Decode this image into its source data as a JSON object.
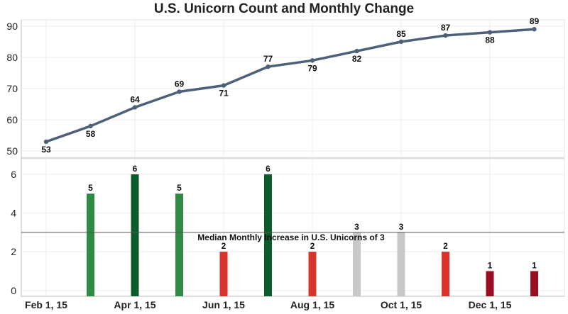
{
  "chart_data": {
    "title": "U.S. Unicorn Count and Monthly Change",
    "x_ticks": [
      "Feb 1, 15",
      "Apr 1, 15",
      "Jun 1, 15",
      "Aug 1, 15",
      "Oct 1, 15",
      "Dec 1, 15"
    ],
    "top": {
      "type": "line",
      "months": [
        "Feb 1, 15",
        "Mar 1, 15",
        "Apr 1, 15",
        "May 1, 15",
        "Jun 1, 15",
        "Jul 1, 15",
        "Aug 1, 15",
        "Sep 1, 15",
        "Oct 1, 15",
        "Nov 1, 15",
        "Dec 1, 15",
        "Jan 1, 16"
      ],
      "values": [
        53,
        58,
        64,
        69,
        71,
        77,
        79,
        82,
        85,
        87,
        88,
        89
      ],
      "label_above": [
        false,
        false,
        true,
        true,
        false,
        true,
        false,
        false,
        true,
        true,
        false,
        true
      ],
      "y_ticks": [
        50,
        60,
        70,
        80,
        90
      ],
      "ylim": [
        48,
        92
      ],
      "color": "#4e6079"
    },
    "bottom": {
      "type": "bar",
      "months": [
        "Mar 1, 15",
        "Apr 1, 15",
        "May 1, 15",
        "Jun 1, 15",
        "Jul 1, 15",
        "Aug 1, 15",
        "Sep 1, 15",
        "Oct 1, 15",
        "Nov 1, 15",
        "Dec 1, 15",
        "Jan 1, 16"
      ],
      "values": [
        5,
        6,
        5,
        2,
        6,
        2,
        3,
        3,
        2,
        1,
        1
      ],
      "colors": [
        "#2f8a44",
        "#0d5a2a",
        "#2f8a44",
        "#d9342b",
        "#0d5a2a",
        "#d9342b",
        "#c8c8c8",
        "#c8c8c8",
        "#d9342b",
        "#9b0e22",
        "#9b0e22"
      ],
      "y_ticks": [
        0,
        2,
        4,
        6
      ],
      "ylim": [
        -0.3,
        6.8
      ],
      "median": 3,
      "median_label": "Median Monthly Increase in U.S. Unicorns of 3"
    }
  }
}
